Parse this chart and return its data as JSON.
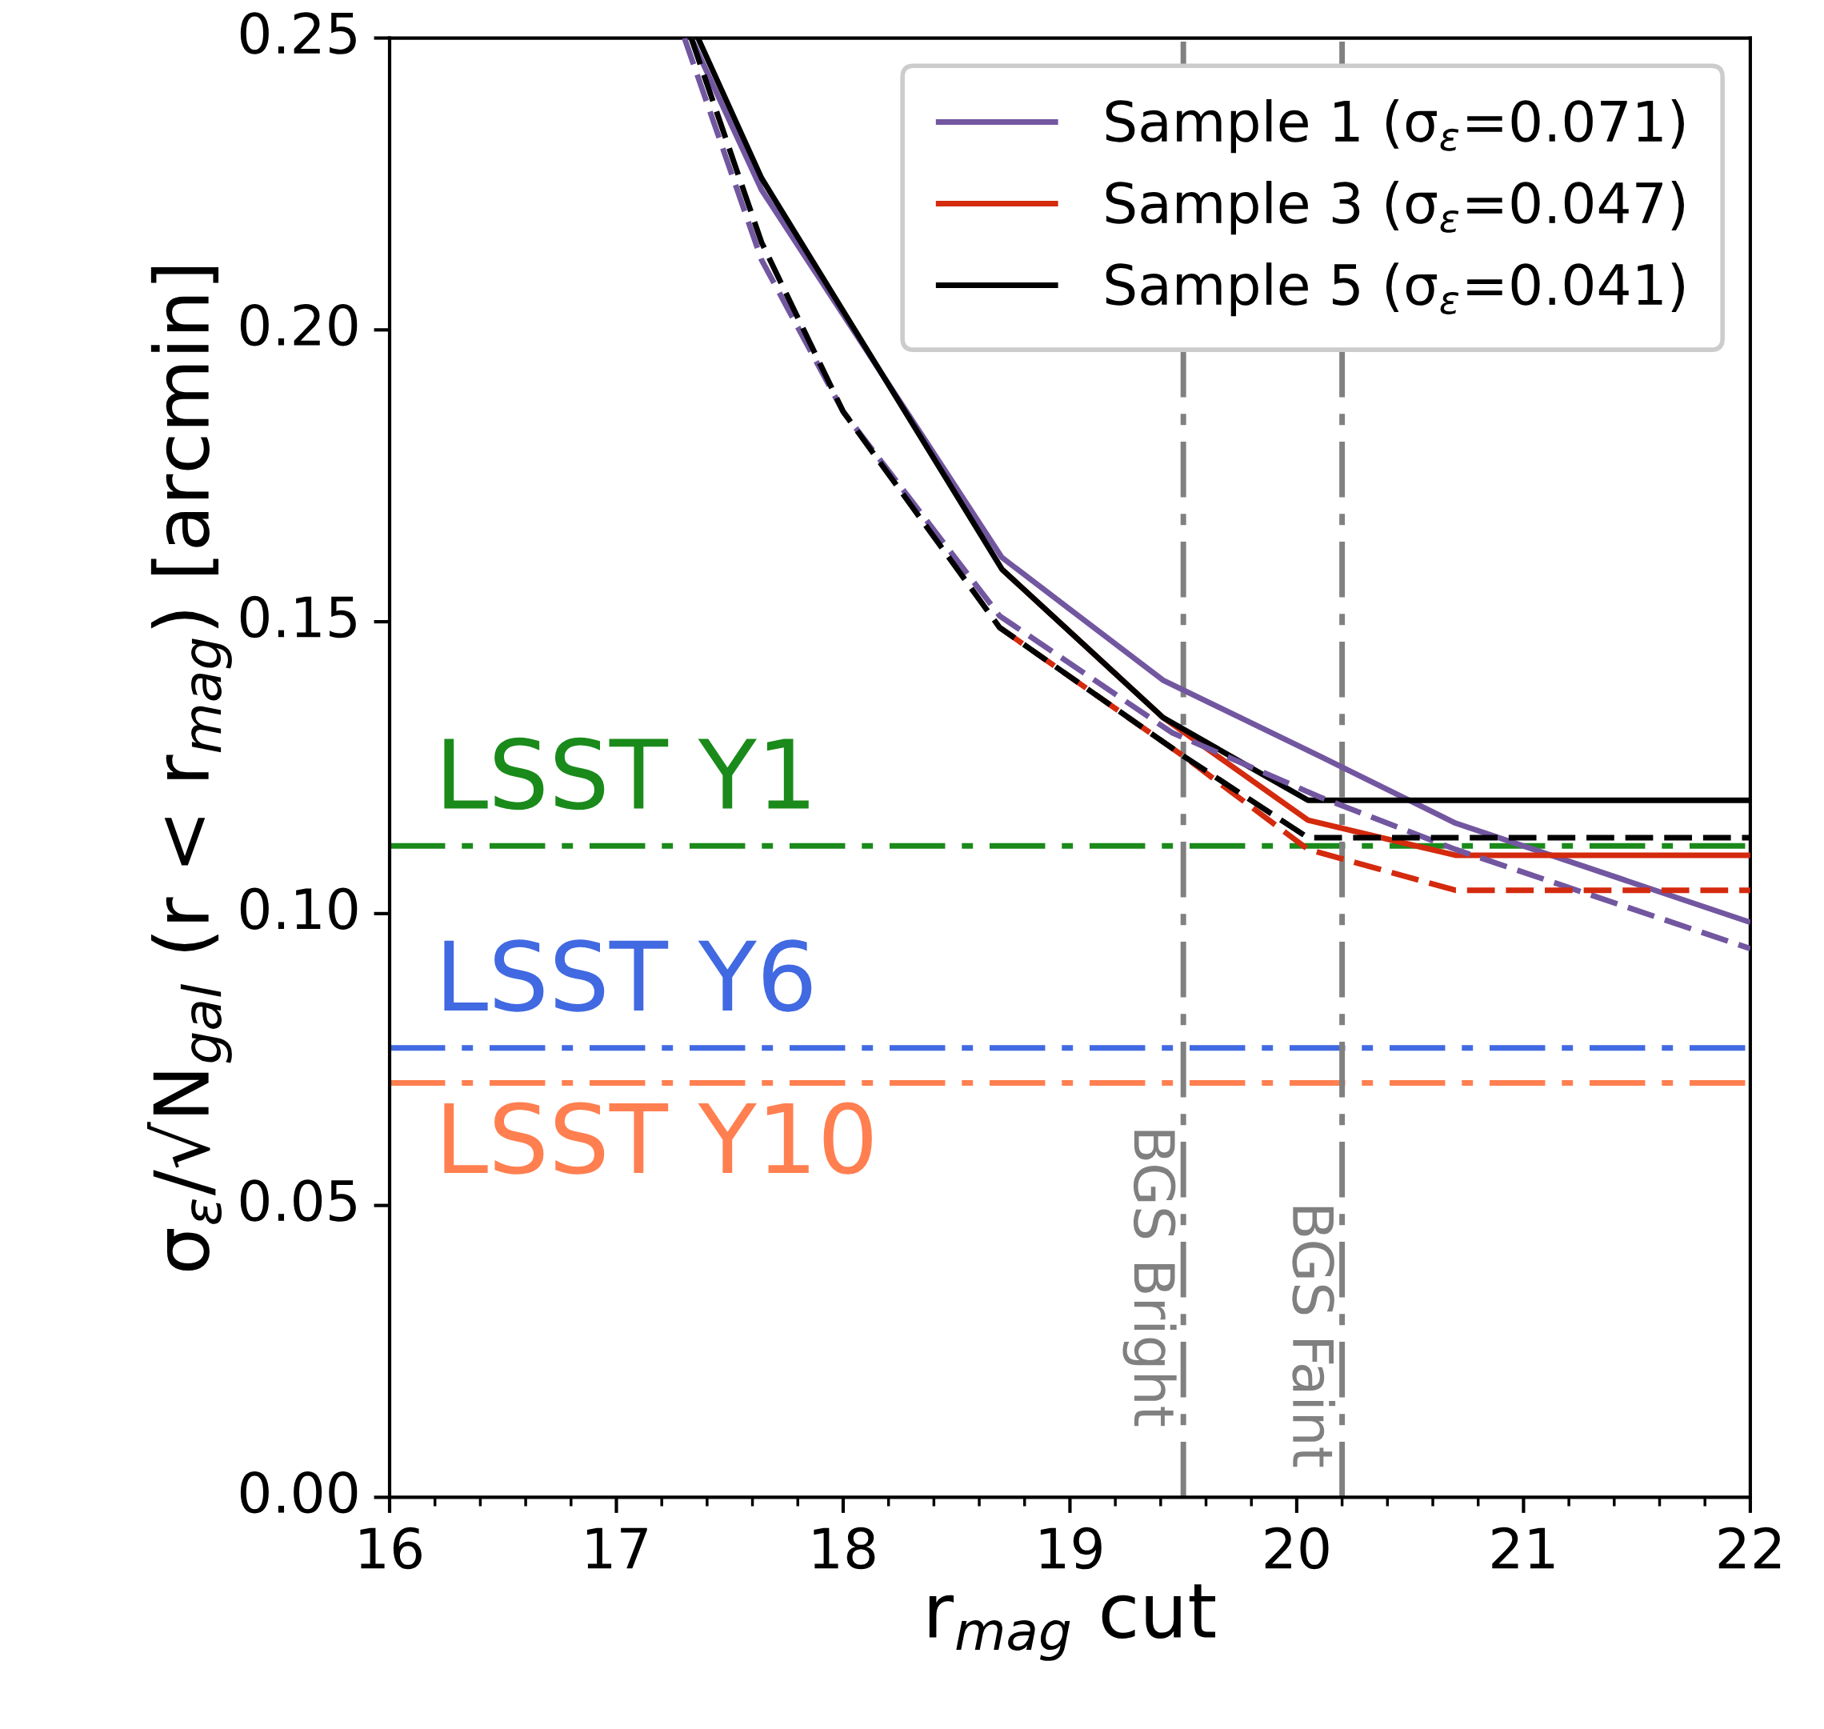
{
  "chart_data": {
    "type": "line",
    "xlabel": "r$_{mag}$ cut",
    "ylabel": "σ$_{ε}$/√N$_{gal}$ (r < r$_{mag}$) [arcmin]",
    "xlim": [
      16,
      22
    ],
    "xticks": [
      16,
      17,
      18,
      19,
      20,
      21,
      22
    ],
    "ylim": [
      0,
      0.25
    ],
    "yticks": [
      {
        "value": 0,
        "label": "0.00"
      },
      {
        "value": 0.05,
        "label": "0.05"
      },
      {
        "value": 0.1,
        "label": "0.10"
      },
      {
        "value": 0.15,
        "label": "0.15"
      },
      {
        "value": 0.2,
        "label": "0.20"
      },
      {
        "value": 0.25,
        "label": "0.25"
      }
    ],
    "legend": "top right",
    "marker": "none",
    "series": [
      {
        "name": "Sample 1 (σ$_{ε}$=0.071)",
        "color": "#7257a0",
        "line_style": "solid",
        "x": [
          17.33,
          17.64,
          18.7,
          19.41,
          20.1,
          20.7,
          22
        ],
        "values": [
          0.25,
          0.224,
          0.161,
          0.14,
          0.127,
          0.1155,
          0.0985
        ]
      },
      {
        "name": "Sample 3 (σ$_{ε}$=0.047)",
        "color": "#d42a0e",
        "line_style": "solid",
        "x": [
          18.7,
          19.41,
          20.05,
          20.7,
          22
        ],
        "values": [
          0.159,
          0.1336,
          0.116,
          0.11,
          0.11
        ]
      },
      {
        "name": "Sample 5 (σ$_{ε}$=0.041)",
        "color": "#000000",
        "line_style": "solid",
        "x": [
          17.36,
          17.64,
          18.7,
          19.41,
          20.05,
          22
        ],
        "values": [
          0.25,
          0.226,
          0.159,
          0.1336,
          0.1194,
          0.1194
        ]
      },
      {
        "color": "#7257a0",
        "line_style": "dashed",
        "x": [
          17.3,
          17.64,
          18.0,
          18.69,
          19.45,
          20.1,
          20.7,
          22
        ],
        "values": [
          0.25,
          0.212,
          0.186,
          0.151,
          0.131,
          0.12,
          0.111,
          0.094
        ]
      },
      {
        "color": "#d42a0e",
        "line_style": "dashed",
        "x": [
          18.69,
          19.5,
          20.05,
          20.7,
          22
        ],
        "values": [
          0.149,
          0.127,
          0.111,
          0.104,
          0.104
        ]
      },
      {
        "color": "#000000",
        "line_style": "dashed",
        "x": [
          17.33,
          17.64,
          18.0,
          18.69,
          19.5,
          20.05,
          22
        ],
        "values": [
          0.25,
          0.215,
          0.186,
          0.149,
          0.127,
          0.113,
          0.113
        ]
      }
    ],
    "ref_lines": [
      {
        "axis": "y",
        "value": 0.1116,
        "label": "LSST Y1",
        "color": "#1a8a1a",
        "line_style": "dashdot"
      },
      {
        "axis": "y",
        "value": 0.077,
        "label": "LSST Y6",
        "color": "#4169e1",
        "line_style": "dashdot"
      },
      {
        "axis": "y",
        "value": 0.071,
        "label": "LSST Y10",
        "color": "#ff7f50",
        "line_style": "dashdot"
      },
      {
        "axis": "x",
        "value": 19.5,
        "label": "BGS Bright",
        "color": "#808080",
        "line_style": "dashdot"
      },
      {
        "axis": "x",
        "value": 20.2,
        "label": "BGS Faint",
        "color": "#808080",
        "line_style": "dashdot"
      }
    ]
  }
}
